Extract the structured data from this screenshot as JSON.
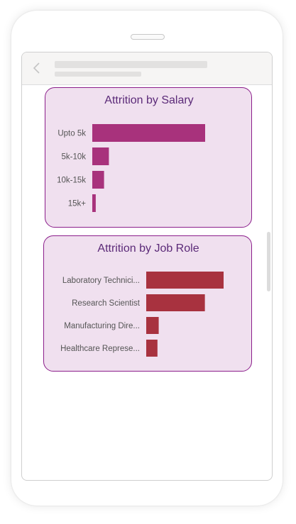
{
  "colors": {
    "salary_bar": "#a8327c",
    "jobrole_bar": "#a8323f",
    "card_bg": "#f0e0ef",
    "card_border": "#8b1e8b"
  },
  "icons": {
    "back": "chevron-left-icon"
  },
  "chart_data": [
    {
      "type": "bar",
      "orientation": "horizontal",
      "title": "Attrition by Salary",
      "categories": [
        "Upto 5k",
        "5k-10k",
        "10k-15k",
        "15k+"
      ],
      "values": [
        163,
        24,
        17,
        5
      ],
      "xlabel": "",
      "ylabel": "",
      "xlim": [
        0,
        163
      ],
      "grid": false
    },
    {
      "type": "bar",
      "orientation": "horizontal",
      "title": "Attrition by Job Role",
      "categories": [
        "Laboratory Technici...",
        "Research Scientist",
        "Manufacturing Dire...",
        "Healthcare Represe..."
      ],
      "values": [
        62,
        47,
        10,
        9
      ],
      "xlabel": "",
      "ylabel": "",
      "xlim": [
        0,
        62
      ],
      "grid": false
    }
  ]
}
